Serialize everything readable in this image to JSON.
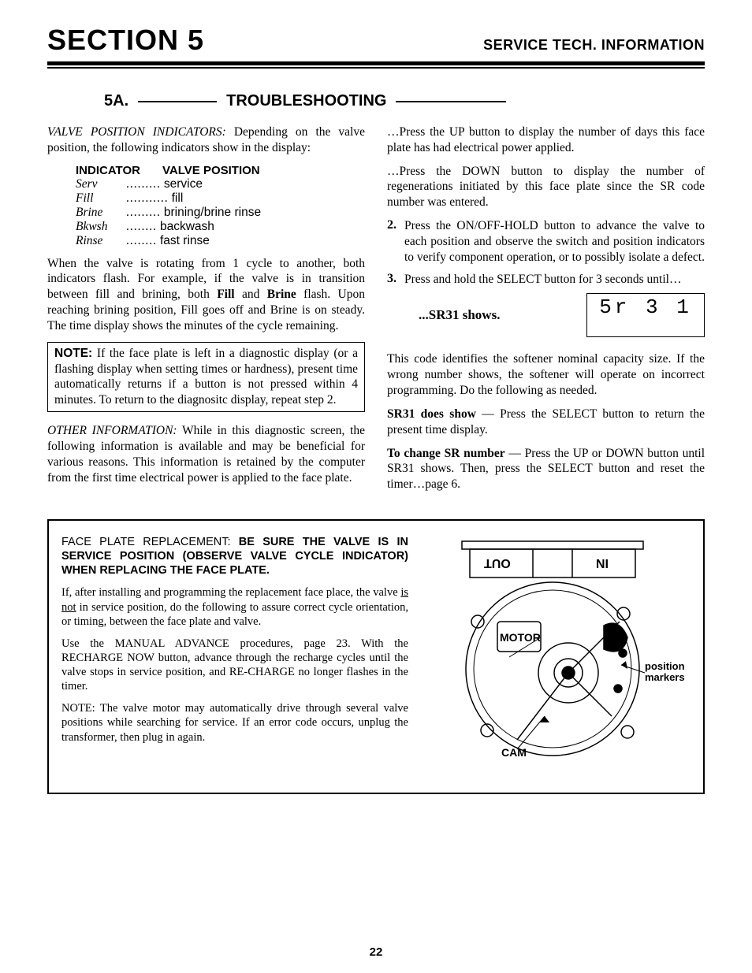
{
  "header": {
    "title": "SECTION 5",
    "subtitle": "SERVICE TECH. INFORMATION"
  },
  "subhead": {
    "left": "5A.",
    "right": "TROUBLESHOOTING"
  },
  "col_left": {
    "p1_lead": "VALVE POSITION INDICATORS:",
    "p1_rest": " Depending on the valve position, the following indicators show in the display:",
    "table": {
      "head_left": "INDICATOR",
      "head_right": "VALVE POSITION",
      "rows": [
        {
          "k": "Serv",
          "dots": ".........",
          "v": "service"
        },
        {
          "k": "Fill",
          "dots": "...........",
          "v": "fill"
        },
        {
          "k": "Brine",
          "dots": ".........",
          "v": "brining/brine rinse"
        },
        {
          "k": "Bkwsh",
          "dots": "........",
          "v": "backwash"
        },
        {
          "k": "Rinse",
          "dots": "........",
          "v": "fast rinse"
        }
      ]
    },
    "p2_a": "When the valve is rotating from 1 cycle to another, both indicators flash. For example, if the valve is in transition between fill and brining, both ",
    "p2_b1": "Fill",
    "p2_c": " and ",
    "p2_b2": "Brine",
    "p2_d": " flash. Upon reaching brining position, Fill goes off and Brine is on steady. The time display shows the minutes of the cycle remaining.",
    "note_lead": "NOTE:",
    "note_body": " If the face plate is left in a diagnostic display (or a flashing display when setting times or hardness), present time automatically returns if a button is not pressed within 4 minutes. To return to the diagnositc display, repeat step 2.",
    "p3_lead": "OTHER INFORMATION:",
    "p3_rest": " While in this diagnostic screen, the following information is available and may be beneficial for various reasons. This information is retained by the computer from the first time electrical power is applied to the face plate."
  },
  "col_right": {
    "p1": "…Press the UP button to display the number of days this face plate has had electrical power applied.",
    "p2": "…Press the DOWN button to display the number of regenerations initiated by this face plate since the SR code number was entered.",
    "step2": "Press the ON/OFF-HOLD button to advance the valve to each position and observe the switch and position indicators to verify component operation, or to possibly isolate a defect.",
    "step3": "Press and hold the SELECT button for 3 seconds until…",
    "sr_label": "...SR31 shows.",
    "lcd": "5r 3 1",
    "p4": "This code identifies the softener nominal capacity size. If the wrong number shows, the softener will operate on incorrect programming. Do the following as needed.",
    "p5_lead": "SR31 does show",
    "p5_rest": " — Press the SELECT button to return the present time display.",
    "p6_lead": "To change SR number",
    "p6_rest": " — Press the UP or DOWN button until SR31 shows. Then, press the SELECT button and reset the timer…page 6."
  },
  "replace": {
    "head_plain": "FACE PLATE REPLACEMENT: ",
    "head_bold": "BE SURE THE VALVE IS IN SERVICE POSITION (OBSERVE VALVE CYCLE INDICATOR) WHEN REPLACING THE FACE PLATE.",
    "p1_a": "If, after installing and programming the replacement face place, the valve ",
    "p1_u": "is not",
    "p1_b": " in service position, do the following to assure correct cycle orientation, or timing, between the face plate and valve.",
    "p2": "Use the MANUAL ADVANCE procedures, page 23. With the RECHARGE NOW button, advance through the recharge cycles until the valve stops in service position, and RE-CHARGE no longer flashes in the timer.",
    "p3": "NOTE: The valve motor may automatically drive through several valve positions while searching for service. If an error code occurs, unplug the transformer, then plug in again."
  },
  "diagram": {
    "out": "OUT",
    "in": "IN",
    "motor": "MOTOR",
    "cam": "CAM",
    "pos_markers_1": "position",
    "pos_markers_2": "markers"
  },
  "page_num": "22",
  "colors": {
    "text": "#000000",
    "bg": "#ffffff"
  }
}
